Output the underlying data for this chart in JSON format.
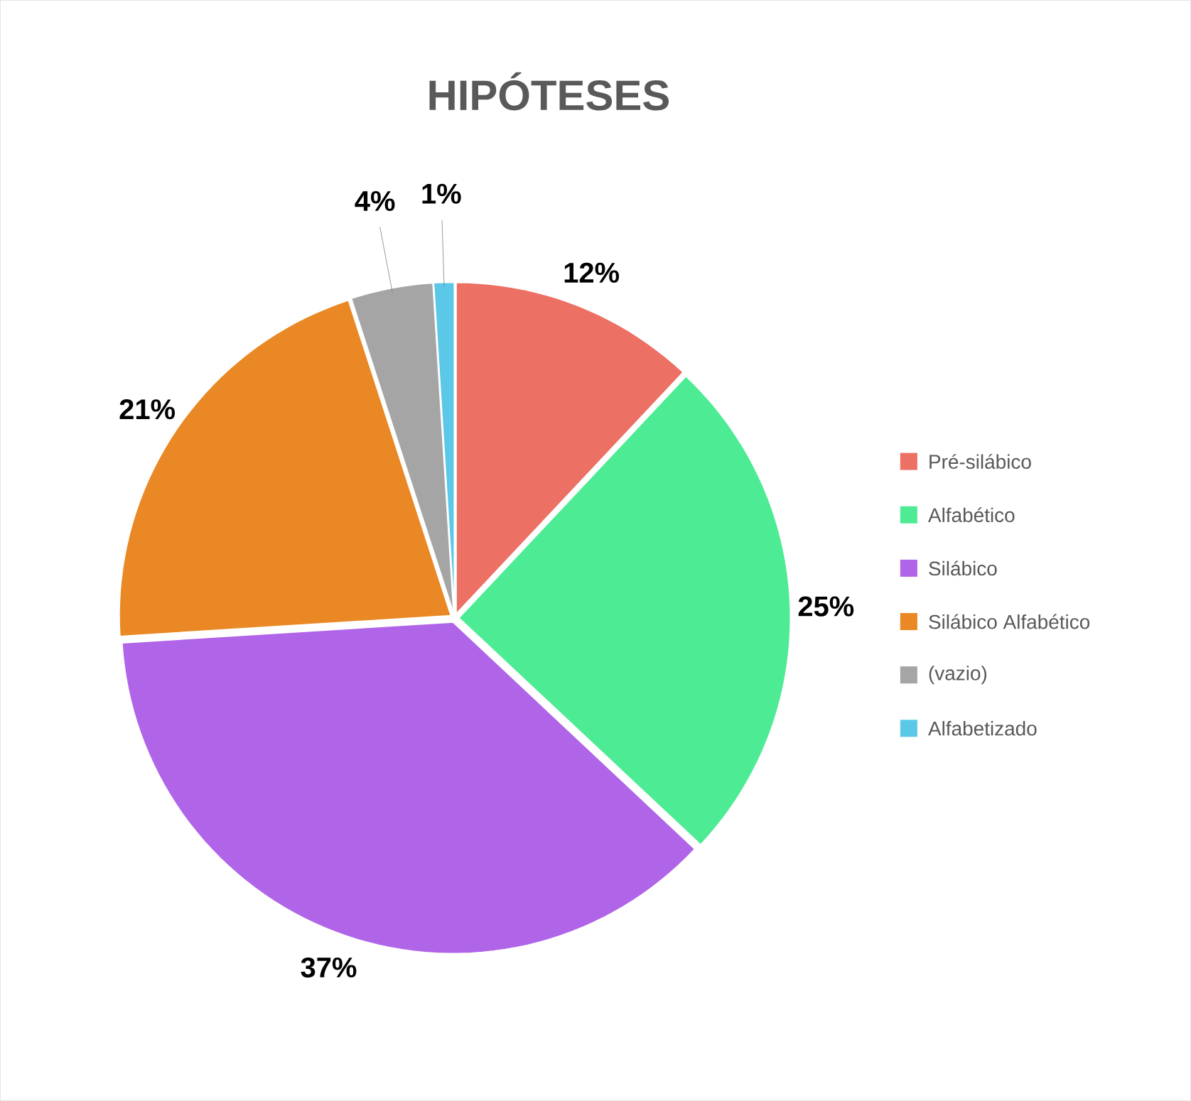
{
  "chart_data": {
    "type": "pie",
    "title": "HIPÓTESES",
    "categories": [
      "Pré-silábico",
      "Alfabético",
      "Silábico",
      "Silábico Alfabético",
      "(vazio)",
      "Alfabetizado"
    ],
    "values": [
      12,
      25,
      37,
      21,
      4,
      1
    ],
    "colors": [
      "#ec7063",
      "#4deb94",
      "#b065e8",
      "#e98824",
      "#a5a5a5",
      "#5bc8e8"
    ],
    "value_labels": [
      "12%",
      "25%",
      "37%",
      "21%",
      "4%",
      "1%"
    ],
    "legend": "right"
  }
}
